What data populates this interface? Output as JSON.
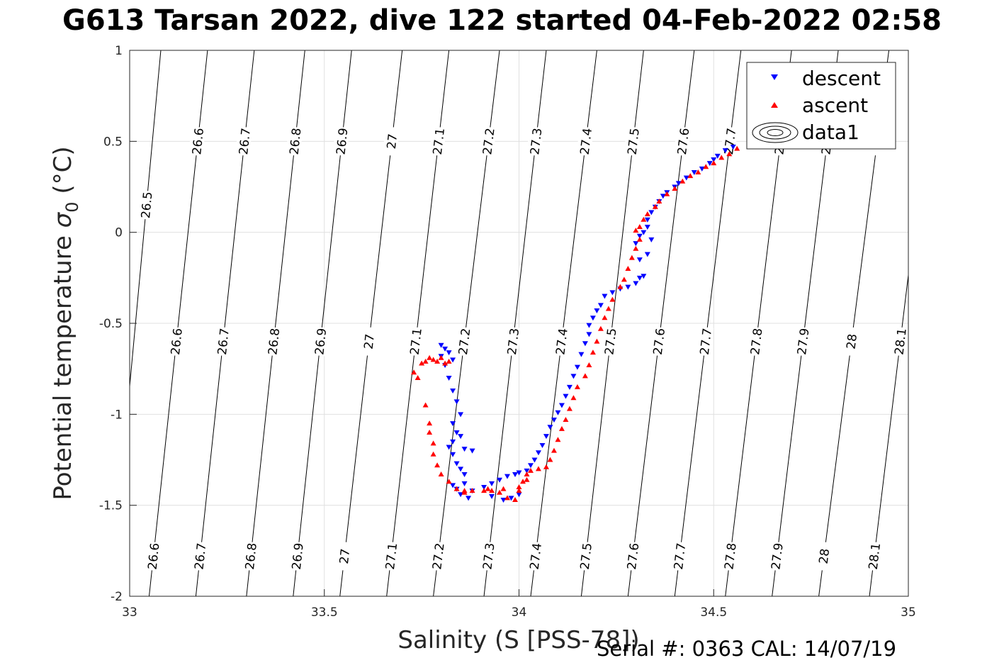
{
  "title": "G613 Tarsan 2022, dive 122 started 04-Feb-2022 02:58",
  "footer": "Serial #: 0363  CAL: 14/07/19",
  "chart_data": {
    "type": "scatter",
    "xlabel": "Salinity (S [PSS-78])",
    "ylabel_main": "Potential temperature ",
    "ylabel_sigma": "σ",
    "ylabel_sub": "0",
    "ylabel_unit": " (°C)",
    "xlim": [
      33,
      35
    ],
    "ylim": [
      -2,
      1
    ],
    "xticks": [
      "33",
      "33.5",
      "34",
      "34.5",
      "35"
    ],
    "yticks": [
      "-2",
      "-1.5",
      "-1",
      "-0.5",
      "0",
      "0.5",
      "1"
    ],
    "grid": true,
    "legend_position": "top-right",
    "legend": [
      "descent",
      "ascent",
      "data1"
    ],
    "colors": {
      "descent": "#0000ff",
      "ascent": "#ff0000",
      "contour": "#000000",
      "grid": "#e0e0e0"
    },
    "contours": [
      {
        "label": "26.5",
        "s_at_top": 33.08,
        "s_at_bottom": 32.95
      },
      {
        "label": "26.6",
        "s_at_top": 33.2,
        "s_at_bottom": 33.05
      },
      {
        "label": "26.7",
        "s_at_top": 33.32,
        "s_at_bottom": 33.17
      },
      {
        "label": "26.8",
        "s_at_top": 33.45,
        "s_at_bottom": 33.3
      },
      {
        "label": "26.9",
        "s_at_top": 33.57,
        "s_at_bottom": 33.42
      },
      {
        "label": "27",
        "s_at_top": 33.7,
        "s_at_bottom": 33.54
      },
      {
        "label": "27.1",
        "s_at_top": 33.82,
        "s_at_bottom": 33.66
      },
      {
        "label": "27.2",
        "s_at_top": 33.95,
        "s_at_bottom": 33.78
      },
      {
        "label": "27.3",
        "s_at_top": 34.07,
        "s_at_bottom": 33.91
      },
      {
        "label": "27.4",
        "s_at_top": 34.2,
        "s_at_bottom": 34.03
      },
      {
        "label": "27.5",
        "s_at_top": 34.32,
        "s_at_bottom": 34.16
      },
      {
        "label": "27.6",
        "s_at_top": 34.45,
        "s_at_bottom": 34.28
      },
      {
        "label": "27.7",
        "s_at_top": 34.57,
        "s_at_bottom": 34.4
      },
      {
        "label": "27.8",
        "s_at_top": 34.7,
        "s_at_bottom": 34.53
      },
      {
        "label": "27.9",
        "s_at_top": 34.82,
        "s_at_bottom": 34.65
      },
      {
        "label": "28",
        "s_at_top": 34.95,
        "s_at_bottom": 34.77
      },
      {
        "label": "28.1",
        "s_at_top": 35.07,
        "s_at_bottom": 34.9
      }
    ],
    "series": [
      {
        "name": "descent",
        "marker": "triangle-down",
        "points": [
          [
            34.55,
            0.47
          ],
          [
            34.53,
            0.45
          ],
          [
            34.51,
            0.42
          ],
          [
            34.5,
            0.4
          ],
          [
            34.49,
            0.38
          ],
          [
            34.47,
            0.35
          ],
          [
            34.45,
            0.33
          ],
          [
            34.43,
            0.3
          ],
          [
            34.41,
            0.27
          ],
          [
            34.4,
            0.25
          ],
          [
            34.38,
            0.22
          ],
          [
            34.37,
            0.2
          ],
          [
            34.36,
            0.17
          ],
          [
            34.35,
            0.14
          ],
          [
            34.34,
            0.11
          ],
          [
            34.33,
            0.07
          ],
          [
            34.33,
            0.03
          ],
          [
            34.32,
            0.0
          ],
          [
            34.31,
            -0.02
          ],
          [
            34.3,
            -0.06
          ],
          [
            34.34,
            -0.04
          ],
          [
            34.33,
            -0.12
          ],
          [
            34.31,
            -0.15
          ],
          [
            34.31,
            -0.25
          ],
          [
            34.32,
            -0.24
          ],
          [
            34.3,
            -0.28
          ],
          [
            34.28,
            -0.3
          ],
          [
            34.26,
            -0.31
          ],
          [
            34.24,
            -0.33
          ],
          [
            34.22,
            -0.35
          ],
          [
            34.21,
            -0.4
          ],
          [
            34.2,
            -0.43
          ],
          [
            34.19,
            -0.47
          ],
          [
            34.18,
            -0.51
          ],
          [
            34.18,
            -0.56
          ],
          [
            34.17,
            -0.61
          ],
          [
            34.16,
            -0.67
          ],
          [
            34.15,
            -0.74
          ],
          [
            34.14,
            -0.79
          ],
          [
            34.13,
            -0.85
          ],
          [
            34.12,
            -0.9
          ],
          [
            34.11,
            -0.95
          ],
          [
            34.1,
            -0.99
          ],
          [
            34.09,
            -1.03
          ],
          [
            34.08,
            -1.07
          ],
          [
            34.07,
            -1.12
          ],
          [
            34.06,
            -1.17
          ],
          [
            34.05,
            -1.21
          ],
          [
            34.04,
            -1.25
          ],
          [
            34.03,
            -1.28
          ],
          [
            34.02,
            -1.31
          ],
          [
            34.0,
            -1.32
          ],
          [
            33.99,
            -1.33
          ],
          [
            33.97,
            -1.34
          ],
          [
            33.95,
            -1.36
          ],
          [
            33.93,
            -1.38
          ],
          [
            33.91,
            -1.4
          ],
          [
            33.88,
            -1.42
          ],
          [
            33.87,
            -1.46
          ],
          [
            33.85,
            -1.44
          ],
          [
            33.84,
            -1.41
          ],
          [
            33.83,
            -1.39
          ],
          [
            33.86,
            -1.33
          ],
          [
            33.85,
            -1.3
          ],
          [
            33.84,
            -1.27
          ],
          [
            33.83,
            -1.22
          ],
          [
            33.82,
            -1.18
          ],
          [
            33.83,
            -1.15
          ],
          [
            33.85,
            -1.12
          ],
          [
            33.86,
            -1.19
          ],
          [
            33.84,
            -1.1
          ],
          [
            33.83,
            -1.05
          ],
          [
            33.85,
            -1.0
          ],
          [
            33.84,
            -0.93
          ],
          [
            33.83,
            -0.87
          ],
          [
            33.82,
            -0.8
          ],
          [
            33.81,
            -0.73
          ],
          [
            33.8,
            -0.68
          ],
          [
            33.81,
            -0.64
          ],
          [
            33.8,
            -0.62
          ],
          [
            33.83,
            -0.7
          ],
          [
            33.82,
            -0.66
          ],
          [
            33.88,
            -1.2
          ],
          [
            33.86,
            -1.38
          ],
          [
            33.93,
            -1.45
          ],
          [
            33.96,
            -1.47
          ],
          [
            33.98,
            -1.46
          ],
          [
            34.0,
            -1.44
          ]
        ]
      },
      {
        "name": "ascent",
        "marker": "triangle-up",
        "points": [
          [
            34.56,
            0.46
          ],
          [
            34.54,
            0.43
          ],
          [
            34.52,
            0.41
          ],
          [
            34.5,
            0.38
          ],
          [
            34.48,
            0.36
          ],
          [
            34.46,
            0.33
          ],
          [
            34.44,
            0.31
          ],
          [
            34.42,
            0.28
          ],
          [
            34.4,
            0.24
          ],
          [
            34.38,
            0.21
          ],
          [
            34.36,
            0.17
          ],
          [
            34.35,
            0.14
          ],
          [
            34.33,
            0.1
          ],
          [
            34.32,
            0.07
          ],
          [
            34.31,
            0.03
          ],
          [
            34.3,
            0.01
          ],
          [
            34.31,
            -0.04
          ],
          [
            34.3,
            -0.09
          ],
          [
            34.29,
            -0.14
          ],
          [
            34.28,
            -0.2
          ],
          [
            34.27,
            -0.26
          ],
          [
            34.26,
            -0.3
          ],
          [
            34.24,
            -0.37
          ],
          [
            34.23,
            -0.42
          ],
          [
            34.22,
            -0.47
          ],
          [
            34.21,
            -0.53
          ],
          [
            34.2,
            -0.6
          ],
          [
            34.19,
            -0.66
          ],
          [
            34.18,
            -0.73
          ],
          [
            34.17,
            -0.79
          ],
          [
            34.15,
            -0.85
          ],
          [
            34.14,
            -0.91
          ],
          [
            34.13,
            -0.97
          ],
          [
            34.12,
            -1.03
          ],
          [
            34.11,
            -1.08
          ],
          [
            34.1,
            -1.14
          ],
          [
            34.09,
            -1.2
          ],
          [
            34.08,
            -1.25
          ],
          [
            34.07,
            -1.29
          ],
          [
            34.05,
            -1.3
          ],
          [
            34.03,
            -1.31
          ],
          [
            34.02,
            -1.33
          ],
          [
            34.01,
            -1.37
          ],
          [
            34.0,
            -1.42
          ],
          [
            33.99,
            -1.47
          ],
          [
            33.97,
            -1.46
          ],
          [
            33.95,
            -1.43
          ],
          [
            33.93,
            -1.42
          ],
          [
            33.91,
            -1.42
          ],
          [
            33.88,
            -1.42
          ],
          [
            33.86,
            -1.43
          ],
          [
            33.84,
            -1.41
          ],
          [
            33.82,
            -1.37
          ],
          [
            33.8,
            -1.33
          ],
          [
            33.79,
            -1.28
          ],
          [
            33.78,
            -1.22
          ],
          [
            33.78,
            -1.16
          ],
          [
            33.77,
            -1.1
          ],
          [
            33.77,
            -1.05
          ],
          [
            33.76,
            -0.95
          ],
          [
            33.74,
            -0.8
          ],
          [
            33.73,
            -0.77
          ],
          [
            33.75,
            -0.72
          ],
          [
            33.76,
            -0.71
          ],
          [
            33.77,
            -0.69
          ],
          [
            33.78,
            -0.7
          ],
          [
            33.79,
            -0.71
          ],
          [
            33.8,
            -0.69
          ],
          [
            33.81,
            -0.72
          ],
          [
            33.82,
            -0.71
          ],
          [
            33.86,
            -1.42
          ],
          [
            33.92,
            -1.41
          ],
          [
            33.96,
            -1.41
          ],
          [
            34.0,
            -1.4
          ],
          [
            34.02,
            -1.36
          ]
        ]
      }
    ]
  }
}
